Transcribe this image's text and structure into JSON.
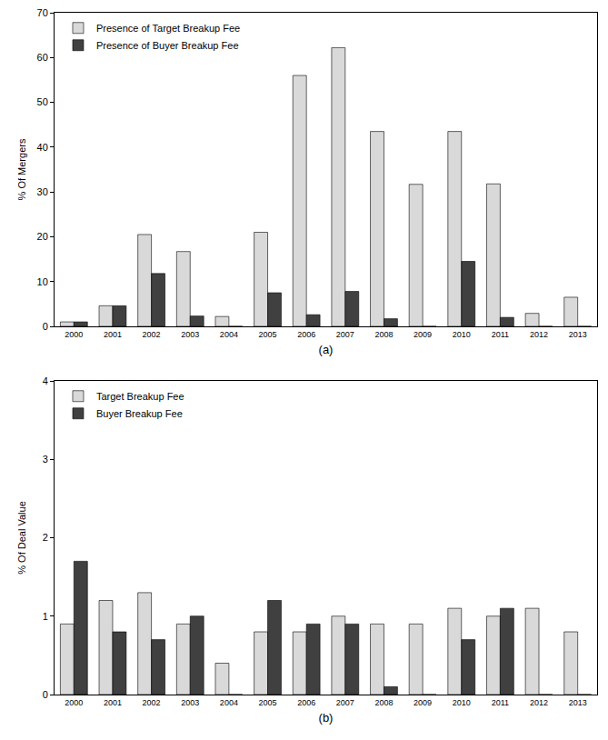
{
  "chart_data": [
    {
      "type": "bar",
      "x_label": "(a)",
      "y_label": "% Of Mergers",
      "categories": [
        "2000",
        "2001",
        "2002",
        "2003",
        "2004",
        "2005",
        "2006",
        "2007",
        "2008",
        "2009",
        "2010",
        "2011",
        "2012",
        "2013"
      ],
      "series": [
        {
          "name": "Presence of Target Breakup Fee",
          "color": "#d9d9d9",
          "values": [
            1,
            4.6,
            20.5,
            16.7,
            2.2,
            21,
            56,
            62.2,
            43.5,
            31.7,
            43.5,
            31.8,
            2.9,
            6.5
          ]
        },
        {
          "name": "Presence of Buyer Breakup Fee",
          "color": "#404040",
          "values": [
            1,
            4.6,
            11.8,
            2.3,
            0,
            7.5,
            2.6,
            7.8,
            1.7,
            0,
            14.5,
            2,
            0,
            0
          ]
        }
      ],
      "ylim": [
        0,
        70
      ],
      "yticks": [
        0,
        10,
        20,
        30,
        40,
        50,
        60,
        70
      ],
      "grid": false,
      "legend": "top-left"
    },
    {
      "type": "bar",
      "x_label": "(b)",
      "y_label": "% Of Deal Value",
      "categories": [
        "2000",
        "2001",
        "2002",
        "2003",
        "2004",
        "2005",
        "2006",
        "2007",
        "2008",
        "2009",
        "2010",
        "2011",
        "2012",
        "2013"
      ],
      "series": [
        {
          "name": "Target Breakup Fee",
          "color": "#d9d9d9",
          "values": [
            0.9,
            1.2,
            1.3,
            0.9,
            0.4,
            0.8,
            0.8,
            1.0,
            0.9,
            0.9,
            1.1,
            1.0,
            1.1,
            0.8
          ]
        },
        {
          "name": "Buyer Breakup Fee",
          "color": "#404040",
          "values": [
            1.7,
            0.8,
            0.7,
            1.0,
            0,
            1.2,
            0.9,
            0.9,
            0.1,
            0,
            0.7,
            1.1,
            0,
            0
          ]
        }
      ],
      "ylim": [
        0,
        4
      ],
      "yticks": [
        0,
        1,
        2,
        3,
        4
      ],
      "grid": false,
      "legend": "top-left"
    }
  ]
}
